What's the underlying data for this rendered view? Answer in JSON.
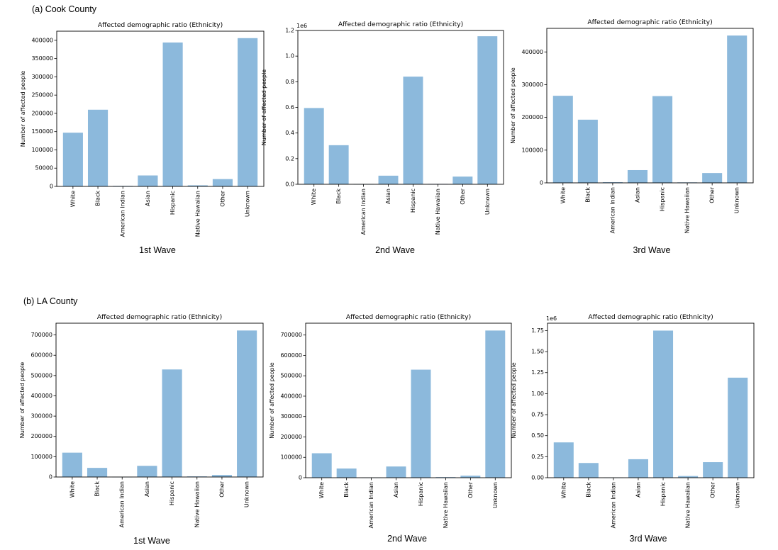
{
  "sections": [
    {
      "label": "(a) Cook County"
    },
    {
      "label": "(b) LA County"
    }
  ],
  "captions": [
    "1st Wave",
    "2nd Wave",
    "3rd Wave",
    "1st Wave",
    "2nd Wave",
    "3rd Wave"
  ],
  "colors": {
    "bar": "#8cb9dc",
    "axis": "#000000"
  },
  "chart_data": [
    {
      "type": "bar",
      "panel": "Cook County - 1st Wave",
      "title": "Affected demographic ratio (Ethnicity)",
      "xlabel": "",
      "ylabel": "Number of affected people",
      "categories": [
        "White",
        "Black",
        "American Indian",
        "Asian",
        "Hispanic",
        "Native Hawaiian",
        "Other",
        "Unknown"
      ],
      "values": [
        147000,
        210000,
        1500,
        30000,
        394000,
        3000,
        20000,
        406000
      ],
      "ylim": [
        0,
        425000
      ],
      "yticks": [
        0,
        50000,
        100000,
        150000,
        200000,
        250000,
        300000,
        350000,
        400000
      ],
      "ytick_labels": [
        "0",
        "50000",
        "100000",
        "150000",
        "200000",
        "250000",
        "300000",
        "350000",
        "400000"
      ],
      "offset_label": "",
      "grid": false,
      "legend": "none"
    },
    {
      "type": "bar",
      "panel": "Cook County - 2nd Wave",
      "title": "Affected demographic ratio (Ethnicity)",
      "xlabel": "",
      "ylabel": "Number of affected people",
      "categories": [
        "White",
        "Black",
        "American Indian",
        "Asian",
        "Hispanic",
        "Native Hawaiian",
        "Other",
        "Unknown"
      ],
      "values": [
        595000,
        305000,
        2000,
        67000,
        840000,
        3000,
        60000,
        1155000
      ],
      "ylim": [
        0,
        1200000
      ],
      "yticks": [
        0,
        200000,
        400000,
        600000,
        800000,
        1000000,
        1200000
      ],
      "ytick_labels": [
        "0.0",
        "0.2",
        "0.4",
        "0.6",
        "0.8",
        "1.0",
        "1.2"
      ],
      "offset_label": "1e6",
      "grid": false,
      "legend": "none"
    },
    {
      "type": "bar",
      "panel": "Cook County - 3rd Wave",
      "title": "Affected demographic ratio (Ethnicity)",
      "xlabel": "",
      "ylabel": "Number of affected people",
      "categories": [
        "White",
        "Black",
        "American Indian",
        "Asian",
        "Hispanic",
        "Native Hawaiian",
        "Other",
        "Unknown"
      ],
      "values": [
        266000,
        193000,
        2000,
        39000,
        265000,
        1500,
        30000,
        450000
      ],
      "ylim": [
        0,
        472000
      ],
      "yticks": [
        0,
        100000,
        200000,
        300000,
        400000
      ],
      "ytick_labels": [
        "0",
        "100000",
        "200000",
        "300000",
        "400000"
      ],
      "offset_label": "",
      "grid": false,
      "legend": "none"
    },
    {
      "type": "bar",
      "panel": "LA County - 1st Wave",
      "title": "Affected demographic ratio (Ethnicity)",
      "xlabel": "",
      "ylabel": "Number of affected people",
      "categories": [
        "White",
        "Black",
        "American Indian",
        "Asian",
        "Hispanic",
        "Native Hawaiian",
        "Other",
        "Unknown"
      ],
      "values": [
        120000,
        45000,
        1000,
        55000,
        530000,
        3000,
        10000,
        722000
      ],
      "ylim": [
        0,
        758000
      ],
      "yticks": [
        0,
        100000,
        200000,
        300000,
        400000,
        500000,
        600000,
        700000
      ],
      "ytick_labels": [
        "0",
        "100000",
        "200000",
        "300000",
        "400000",
        "500000",
        "600000",
        "700000"
      ],
      "offset_label": "",
      "grid": false,
      "legend": "none"
    },
    {
      "type": "bar",
      "panel": "LA County - 2nd Wave",
      "title": "Affected demographic ratio (Ethnicity)",
      "xlabel": "",
      "ylabel": "Number of affected people",
      "categories": [
        "White",
        "Black",
        "American Indian",
        "Asian",
        "Hispanic",
        "Native Hawaiian",
        "Other",
        "Unknown"
      ],
      "values": [
        120000,
        45000,
        1000,
        55000,
        530000,
        3000,
        10000,
        722000
      ],
      "ylim": [
        0,
        758000
      ],
      "yticks": [
        0,
        100000,
        200000,
        300000,
        400000,
        500000,
        600000,
        700000
      ],
      "ytick_labels": [
        "0",
        "100000",
        "200000",
        "300000",
        "400000",
        "500000",
        "600000",
        "700000"
      ],
      "offset_label": "",
      "grid": false,
      "legend": "none"
    },
    {
      "type": "bar",
      "panel": "LA County - 3rd Wave",
      "title": "Affected demographic ratio (Ethnicity)",
      "xlabel": "",
      "ylabel": "Number of affected people",
      "categories": [
        "White",
        "Black",
        "American Indian",
        "Asian",
        "Hispanic",
        "Native Hawaiian",
        "Other",
        "Unknown"
      ],
      "values": [
        420000,
        175000,
        3000,
        220000,
        1750000,
        20000,
        185000,
        1190000
      ],
      "ylim": [
        0,
        1838000
      ],
      "yticks": [
        0,
        250000,
        500000,
        750000,
        1000000,
        1250000,
        1500000,
        1750000
      ],
      "ytick_labels": [
        "0.00",
        "0.25",
        "0.50",
        "0.75",
        "1.00",
        "1.25",
        "1.50",
        "1.75"
      ],
      "offset_label": "1e6",
      "grid": false,
      "legend": "none"
    }
  ]
}
